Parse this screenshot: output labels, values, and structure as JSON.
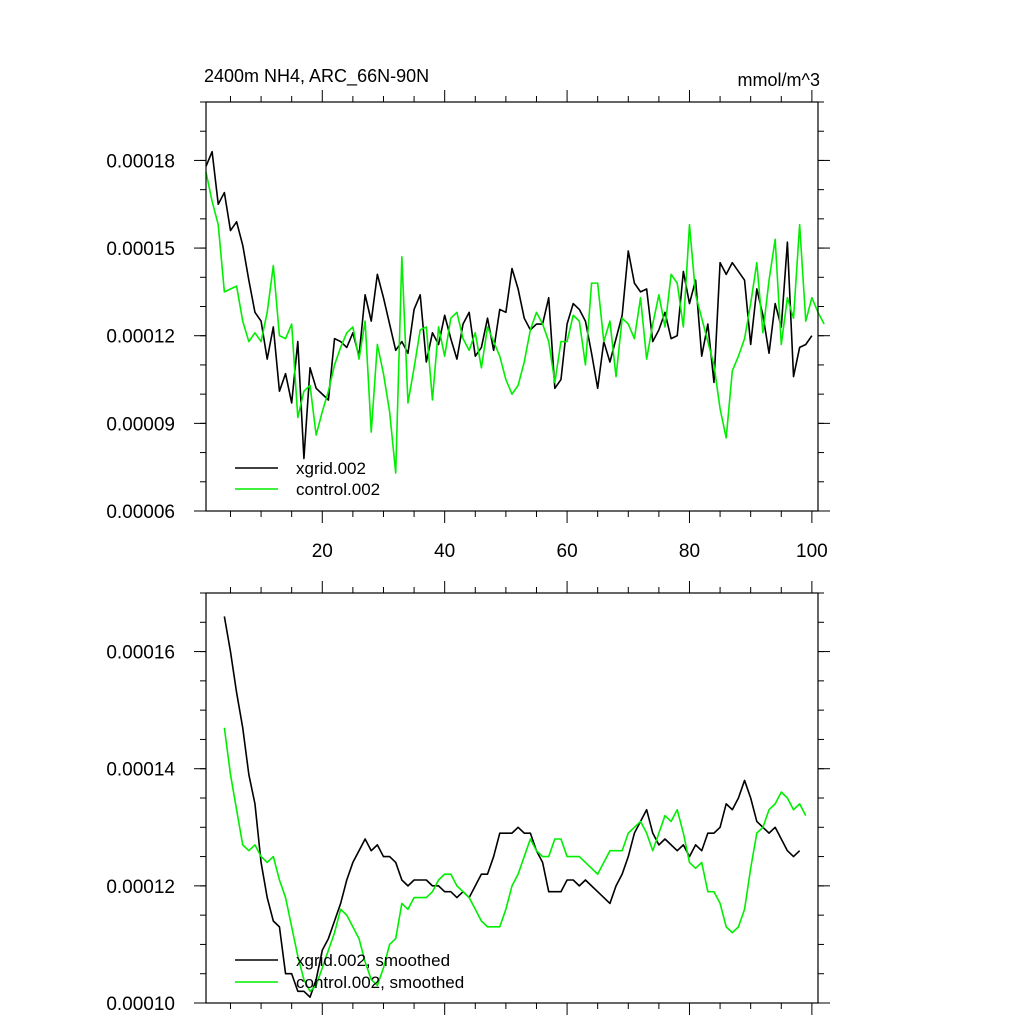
{
  "colors": {
    "xgrid": "#000000",
    "control": "#00ee00",
    "background": "#ffffff"
  },
  "chart_data": [
    {
      "type": "line",
      "title": "2400m NH4, ARC_66N-90N",
      "units": "mmol/m^3",
      "xlabel": "",
      "ylabel": "",
      "xlim": [
        1,
        101
      ],
      "ylim": [
        6e-05,
        0.0002
      ],
      "yticks": [
        "0.00006",
        "0.00009",
        "0.00012",
        "0.00015",
        "0.00018"
      ],
      "xticks": [
        "20",
        "40",
        "60",
        "80",
        "100"
      ],
      "legend_position": "bottom-left",
      "x_start": 1,
      "series": [
        {
          "name": "xgrid.002",
          "color": "#000000",
          "values": [
            0.000178,
            0.000183,
            0.000165,
            0.000169,
            0.000156,
            0.000159,
            0.000151,
            0.000139,
            0.000128,
            0.000125,
            0.000112,
            0.000123,
            0.000101,
            0.000107,
            9.7e-05,
            0.000118,
            7.8e-05,
            0.000109,
            0.000102,
            0.0001,
            9.8e-05,
            0.000119,
            0.000118,
            0.000116,
            0.000121,
            0.000113,
            0.000134,
            0.000125,
            0.000141,
            0.000133,
            0.000124,
            0.000115,
            0.000118,
            0.000114,
            0.000129,
            0.000134,
            0.000111,
            0.000121,
            0.000117,
            0.000127,
            0.000119,
            0.000112,
            0.000124,
            0.000128,
            0.000113,
            0.000116,
            0.000126,
            0.000115,
            0.000129,
            0.000128,
            0.000143,
            0.000136,
            0.000126,
            0.000122,
            0.000124,
            0.000124,
            0.000133,
            0.000102,
            0.000105,
            0.000124,
            0.000131,
            0.000129,
            0.000125,
            0.000114,
            0.000102,
            0.000118,
            0.000111,
            0.000119,
            0.000127,
            0.000149,
            0.000138,
            0.000135,
            0.000136,
            0.000118,
            0.000122,
            0.000128,
            0.000119,
            0.00012,
            0.000142,
            0.000131,
            0.000139,
            0.000113,
            0.000124,
            0.000104,
            0.000145,
            0.000141,
            0.000145,
            0.000142,
            0.000139,
            0.000117,
            0.000136,
            0.000127,
            0.000114,
            0.000131,
            0.000123,
            0.000152,
            0.000106,
            0.000116,
            0.000117,
            0.00012
          ]
        },
        {
          "name": "control.002",
          "color": "#00ee00",
          "values": [
            0.000176,
            0.000166,
            0.000158,
            0.000135,
            0.000136,
            0.000137,
            0.000125,
            0.000118,
            0.000121,
            0.000118,
            0.000128,
            0.000144,
            0.00012,
            0.000119,
            0.000124,
            9.2e-05,
            0.000101,
            0.000103,
            8.6e-05,
            9.4e-05,
            0.000101,
            0.00011,
            0.000116,
            0.000121,
            0.000123,
            0.000112,
            0.000125,
            8.7e-05,
            0.000117,
            0.000107,
            9.4e-05,
            7.3e-05,
            0.000147,
            9.7e-05,
            0.000109,
            0.000122,
            0.000123,
            9.8e-05,
            0.000123,
            0.000113,
            0.000126,
            0.000128,
            0.000119,
            0.000115,
            0.000121,
            0.000109,
            0.000123,
            0.000118,
            0.000113,
            0.000105,
            0.0001,
            0.000103,
            0.000111,
            0.000122,
            0.000128,
            0.000124,
            0.000118,
            0.000104,
            0.000118,
            0.000118,
            0.000127,
            0.000125,
            0.00011,
            0.000138,
            0.000138,
            0.000118,
            0.000125,
            0.000106,
            0.000126,
            0.000124,
            0.000119,
            0.000133,
            0.000112,
            0.000124,
            0.000134,
            0.000123,
            0.000141,
            0.000138,
            0.000123,
            0.000158,
            0.000134,
            0.000126,
            0.000118,
            0.00011,
            9.5e-05,
            8.5e-05,
            0.000108,
            0.000113,
            0.000119,
            0.000131,
            0.000145,
            0.000121,
            0.000139,
            0.000153,
            0.000117,
            0.000133,
            0.000126,
            0.000158,
            0.000125,
            0.000133,
            0.000128,
            0.000124
          ]
        }
      ]
    },
    {
      "type": "line",
      "title": "",
      "xlabel": "",
      "ylabel": "",
      "xlim": [
        1,
        101
      ],
      "ylim": [
        0.0001,
        0.00017
      ],
      "yticks": [
        "0.00010",
        "0.00012",
        "0.00014",
        "0.00016"
      ],
      "xticks": [],
      "legend_position": "bottom-left",
      "x_start": 4,
      "series": [
        {
          "name": "xgrid.002, smoothed",
          "color": "#000000",
          "values": [
            0.000166,
            0.00016,
            0.000153,
            0.000147,
            0.000139,
            0.000134,
            0.000124,
            0.000118,
            0.000114,
            0.000113,
            0.000105,
            0.000105,
            0.000102,
            0.000102,
            0.000101,
            0.000104,
            0.000109,
            0.000111,
            0.000114,
            0.000117,
            0.000121,
            0.000124,
            0.000126,
            0.000128,
            0.000126,
            0.000127,
            0.000125,
            0.000125,
            0.000124,
            0.000121,
            0.00012,
            0.000121,
            0.000121,
            0.000121,
            0.00012,
            0.00012,
            0.000119,
            0.000119,
            0.000118,
            0.000119,
            0.000118,
            0.00012,
            0.000122,
            0.000122,
            0.000125,
            0.000129,
            0.000129,
            0.000129,
            0.00013,
            0.000129,
            0.000129,
            0.000126,
            0.000124,
            0.000119,
            0.000119,
            0.000119,
            0.000121,
            0.000121,
            0.00012,
            0.000121,
            0.00012,
            0.000119,
            0.000118,
            0.000117,
            0.00012,
            0.000122,
            0.000125,
            0.000129,
            0.000131,
            0.000133,
            0.000129,
            0.000127,
            0.000128,
            0.000127,
            0.000126,
            0.000127,
            0.000125,
            0.000127,
            0.000126,
            0.000129,
            0.000129,
            0.00013,
            0.000134,
            0.000133,
            0.000135,
            0.000138,
            0.000135,
            0.000131,
            0.00013,
            0.000129,
            0.00013,
            0.000128,
            0.000126,
            0.000125,
            0.000126
          ]
        },
        {
          "name": "control.002, smoothed",
          "color": "#00ee00",
          "values": [
            0.000147,
            0.000139,
            0.000133,
            0.000127,
            0.000126,
            0.000127,
            0.000125,
            0.000124,
            0.000125,
            0.000121,
            0.000118,
            0.000113,
            0.000108,
            0.000104,
            0.000102,
            0.000103,
            0.000106,
            0.000109,
            0.000112,
            0.000116,
            0.000115,
            0.000113,
            0.000111,
            0.000107,
            0.000104,
            0.000103,
            0.000106,
            0.00011,
            0.000111,
            0.000117,
            0.000116,
            0.000118,
            0.000118,
            0.000118,
            0.000119,
            0.000121,
            0.000122,
            0.000122,
            0.00012,
            0.000119,
            0.000118,
            0.000116,
            0.000114,
            0.000113,
            0.000113,
            0.000113,
            0.000116,
            0.00012,
            0.000122,
            0.000125,
            0.000128,
            0.000126,
            0.000125,
            0.000125,
            0.000128,
            0.000128,
            0.000125,
            0.000125,
            0.000125,
            0.000124,
            0.000123,
            0.000122,
            0.000124,
            0.000126,
            0.000126,
            0.000126,
            0.000129,
            0.00013,
            0.000131,
            0.000129,
            0.000126,
            0.000129,
            0.000132,
            0.000131,
            0.000133,
            0.000129,
            0.000124,
            0.000123,
            0.000124,
            0.000119,
            0.000119,
            0.000117,
            0.000113,
            0.000112,
            0.000113,
            0.000116,
            0.000123,
            0.000129,
            0.00013,
            0.000133,
            0.000134,
            0.000136,
            0.000135,
            0.000133,
            0.000134,
            0.000132
          ]
        }
      ]
    }
  ]
}
